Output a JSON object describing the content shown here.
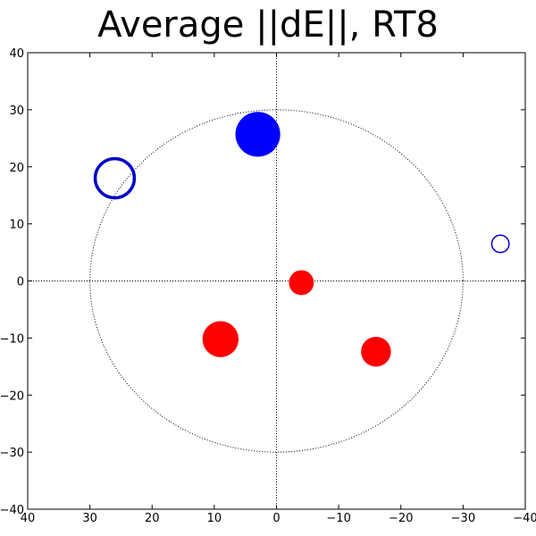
{
  "chart_data": {
    "type": "scatter",
    "title": "Average ||dE||, RT8",
    "xlabel": "",
    "ylabel": "",
    "xlim": [
      40,
      -40
    ],
    "ylim": [
      -40,
      40
    ],
    "x_ticks": [
      "40",
      "30",
      "20",
      "10",
      "0",
      "−10",
      "−20",
      "−30",
      "−40"
    ],
    "y_ticks": [
      "40",
      "30",
      "20",
      "10",
      "0",
      "−10",
      "−20",
      "−30",
      "−40"
    ],
    "reference_lines": {
      "x": 0,
      "y": 0,
      "style": "dotted"
    },
    "reference_circle": {
      "radius": 30,
      "style": "dotted"
    },
    "grid": false,
    "points": [
      {
        "x": 3,
        "y": 25.7,
        "size": 3.6,
        "color": "#0000ff",
        "filled": true
      },
      {
        "x": 26,
        "y": 18,
        "size": 3.4,
        "color": "#0000c8",
        "filled": false
      },
      {
        "x": -36,
        "y": 6.5,
        "size": 1.5,
        "color": "#0000c8",
        "filled": false
      },
      {
        "x": -4,
        "y": -0.3,
        "size": 2.0,
        "color": "#ff0000",
        "filled": true
      },
      {
        "x": 9,
        "y": -10.2,
        "size": 2.9,
        "color": "#ff0000",
        "filled": true
      },
      {
        "x": -16,
        "y": -12.4,
        "size": 2.4,
        "color": "#ff0000",
        "filled": true
      }
    ]
  }
}
